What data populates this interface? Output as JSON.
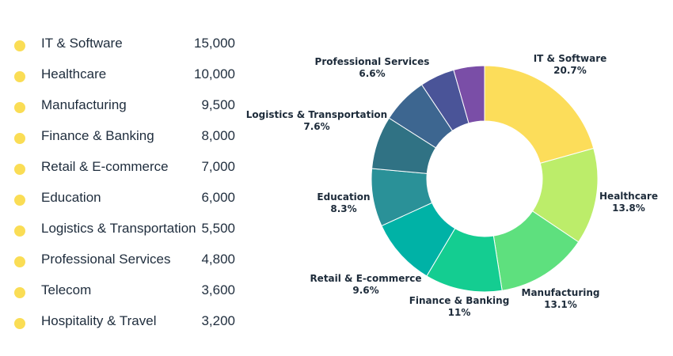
{
  "chart_data": {
    "type": "pie",
    "variant": "donut",
    "categories": [
      "IT & Software",
      "Healthcare",
      "Manufacturing",
      "Finance & Banking",
      "Retail & E-commerce",
      "Education",
      "Logistics & Transportation",
      "Professional Services",
      "Telecom",
      "Hospitality & Travel"
    ],
    "values": [
      15000,
      10000,
      9500,
      8000,
      7000,
      6000,
      5500,
      4800,
      3600,
      3200
    ],
    "value_labels": [
      "15,000",
      "10,000",
      "9,500",
      "8,000",
      "7,000",
      "6,000",
      "5,500",
      "4,800",
      "3,600",
      "3,200"
    ],
    "percent_labels": [
      "20.7%",
      "13.8%",
      "13.1%",
      "11%",
      "9.6%",
      "8.3%",
      "7.6%",
      "6.6%",
      "",
      ""
    ],
    "colors": [
      "#fcdd5a",
      "#bced6a",
      "#5ee07e",
      "#14cd91",
      "#00b2a6",
      "#2a9198",
      "#307284",
      "#3d6690",
      "#4a5498",
      "#7a4ea7"
    ],
    "legend_marker_color": "#fadd55",
    "legend": "left"
  }
}
